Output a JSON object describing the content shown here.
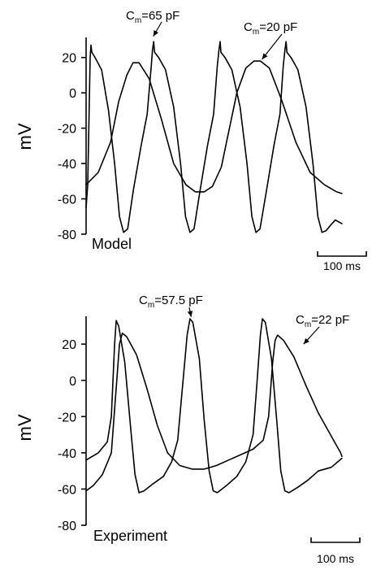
{
  "chart_data": [
    {
      "type": "line",
      "panel_label": "Model",
      "ylabel": "mV",
      "xlim": [
        0,
        670
      ],
      "ylim": [
        -80,
        30
      ],
      "yticks": [
        20,
        0,
        -20,
        -40,
        -60,
        -80
      ],
      "scale_bar": {
        "duration_ms": 100,
        "label": "100 ms"
      },
      "series": [
        {
          "annotation": {
            "label_main": "C",
            "label_sub": "m",
            "label_rest": "=65 pF",
            "arrow_point": [
              165,
              32
            ]
          },
          "points": [
            [
              0,
              -65
            ],
            [
              4,
              -52
            ],
            [
              10,
              20
            ],
            [
              12,
              27
            ],
            [
              14,
              23
            ],
            [
              22,
              20
            ],
            [
              38,
              13
            ],
            [
              55,
              -10
            ],
            [
              70,
              -40
            ],
            [
              82,
              -70
            ],
            [
              92,
              -79
            ],
            [
              102,
              -77
            ],
            [
              116,
              -55
            ],
            [
              135,
              -30
            ],
            [
              150,
              -12
            ],
            [
              160,
              15
            ],
            [
              163,
              24
            ],
            [
              166,
              29
            ],
            [
              168,
              23
            ],
            [
              178,
              20
            ],
            [
              195,
              13
            ],
            [
              215,
              -8
            ],
            [
              232,
              -40
            ],
            [
              244,
              -70
            ],
            [
              255,
              -79
            ],
            [
              265,
              -77
            ],
            [
              280,
              -55
            ],
            [
              298,
              -30
            ],
            [
              313,
              -12
            ],
            [
              322,
              15
            ],
            [
              326,
              24
            ],
            [
              329,
              29
            ],
            [
              331,
              23
            ],
            [
              341,
              20
            ],
            [
              358,
              13
            ],
            [
              378,
              -8
            ],
            [
              395,
              -40
            ],
            [
              407,
              -70
            ],
            [
              417,
              -79
            ],
            [
              427,
              -77
            ],
            [
              443,
              -55
            ],
            [
              461,
              -30
            ],
            [
              476,
              -12
            ],
            [
              484,
              15
            ],
            [
              488,
              24
            ],
            [
              491,
              29
            ],
            [
              493,
              23
            ],
            [
              503,
              20
            ],
            [
              520,
              13
            ],
            [
              540,
              -8
            ],
            [
              557,
              -40
            ],
            [
              569,
              -70
            ],
            [
              579,
              -79
            ],
            [
              589,
              -78
            ],
            [
              600,
              -75
            ],
            [
              612,
              -72
            ],
            [
              620,
              -73
            ],
            [
              628,
              -74
            ]
          ]
        },
        {
          "annotation": {
            "label_main": "C",
            "label_sub": "m",
            "label_rest": "=20 pF",
            "arrow_point": [
              432,
              19
            ]
          },
          "points": [
            [
              0,
              -52
            ],
            [
              30,
              -45
            ],
            [
              60,
              -28
            ],
            [
              80,
              -5
            ],
            [
              100,
              10
            ],
            [
              115,
              17
            ],
            [
              130,
              17
            ],
            [
              155,
              8
            ],
            [
              185,
              -15
            ],
            [
              215,
              -40
            ],
            [
              245,
              -52
            ],
            [
              268,
              -56
            ],
            [
              290,
              -56
            ],
            [
              310,
              -53
            ],
            [
              332,
              -42
            ],
            [
              352,
              -20
            ],
            [
              370,
              0
            ],
            [
              392,
              14
            ],
            [
              412,
              18
            ],
            [
              428,
              18
            ],
            [
              450,
              14
            ],
            [
              480,
              -4
            ],
            [
              515,
              -28
            ],
            [
              550,
              -45
            ],
            [
              585,
              -52
            ],
            [
              615,
              -56
            ],
            [
              628,
              -57
            ]
          ]
        }
      ]
    },
    {
      "type": "line",
      "panel_label": "Experiment",
      "ylabel": "mV",
      "xlim": [
        0,
        670
      ],
      "ylim": [
        -80,
        34
      ],
      "yticks": [
        20,
        0,
        -20,
        -40,
        -60,
        -80
      ],
      "scale_bar": {
        "duration_ms": 100,
        "label": "100 ms"
      },
      "series": [
        {
          "annotation": {
            "label_main": "C",
            "label_sub": "m",
            "label_rest": "=57.5 pF",
            "arrow_point": [
              258,
              35
            ]
          },
          "points": [
            [
              0,
              -44
            ],
            [
              30,
              -40
            ],
            [
              52,
              -34
            ],
            [
              62,
              -20
            ],
            [
              70,
              20
            ],
            [
              74,
              33
            ],
            [
              80,
              30
            ],
            [
              95,
              10
            ],
            [
              110,
              -28
            ],
            [
              120,
              -52
            ],
            [
              130,
              -62
            ],
            [
              142,
              -61
            ],
            [
              165,
              -57
            ],
            [
              190,
              -53
            ],
            [
              210,
              -45
            ],
            [
              225,
              -33
            ],
            [
              238,
              0
            ],
            [
              248,
              25
            ],
            [
              255,
              34
            ],
            [
              262,
              32
            ],
            [
              278,
              12
            ],
            [
              290,
              -22
            ],
            [
              302,
              -50
            ],
            [
              312,
              -61
            ],
            [
              322,
              -62
            ],
            [
              345,
              -58
            ],
            [
              370,
              -53
            ],
            [
              392,
              -45
            ],
            [
              410,
              -30
            ],
            [
              420,
              0
            ],
            [
              428,
              25
            ],
            [
              433,
              34
            ],
            [
              440,
              32
            ],
            [
              455,
              12
            ],
            [
              468,
              -22
            ],
            [
              478,
              -50
            ],
            [
              488,
              -61
            ],
            [
              498,
              -62
            ],
            [
              520,
              -59
            ],
            [
              545,
              -55
            ],
            [
              570,
              -50
            ],
            [
              602,
              -48
            ],
            [
              628,
              -43
            ]
          ]
        },
        {
          "annotation": {
            "label_main": "C",
            "label_sub": "m",
            "label_rest": "=22 pF",
            "arrow_point": [
              534,
              20
            ]
          },
          "points": [
            [
              0,
              -61
            ],
            [
              18,
              -58
            ],
            [
              40,
              -52
            ],
            [
              62,
              -40
            ],
            [
              72,
              -10
            ],
            [
              82,
              20
            ],
            [
              89,
              26
            ],
            [
              100,
              24
            ],
            [
              124,
              14
            ],
            [
              150,
              -5
            ],
            [
              175,
              -25
            ],
            [
              200,
              -40
            ],
            [
              230,
              -47
            ],
            [
              260,
              -49
            ],
            [
              290,
              -49
            ],
            [
              320,
              -47
            ],
            [
              350,
              -44
            ],
            [
              380,
              -41
            ],
            [
              410,
              -38
            ],
            [
              435,
              -33
            ],
            [
              448,
              -20
            ],
            [
              458,
              10
            ],
            [
              464,
              22
            ],
            [
              470,
              25
            ],
            [
              485,
              22
            ],
            [
              510,
              13
            ],
            [
              540,
              -3
            ],
            [
              570,
              -18
            ],
            [
              600,
              -30
            ],
            [
              625,
              -40
            ],
            [
              628,
              -42
            ]
          ]
        }
      ]
    }
  ]
}
